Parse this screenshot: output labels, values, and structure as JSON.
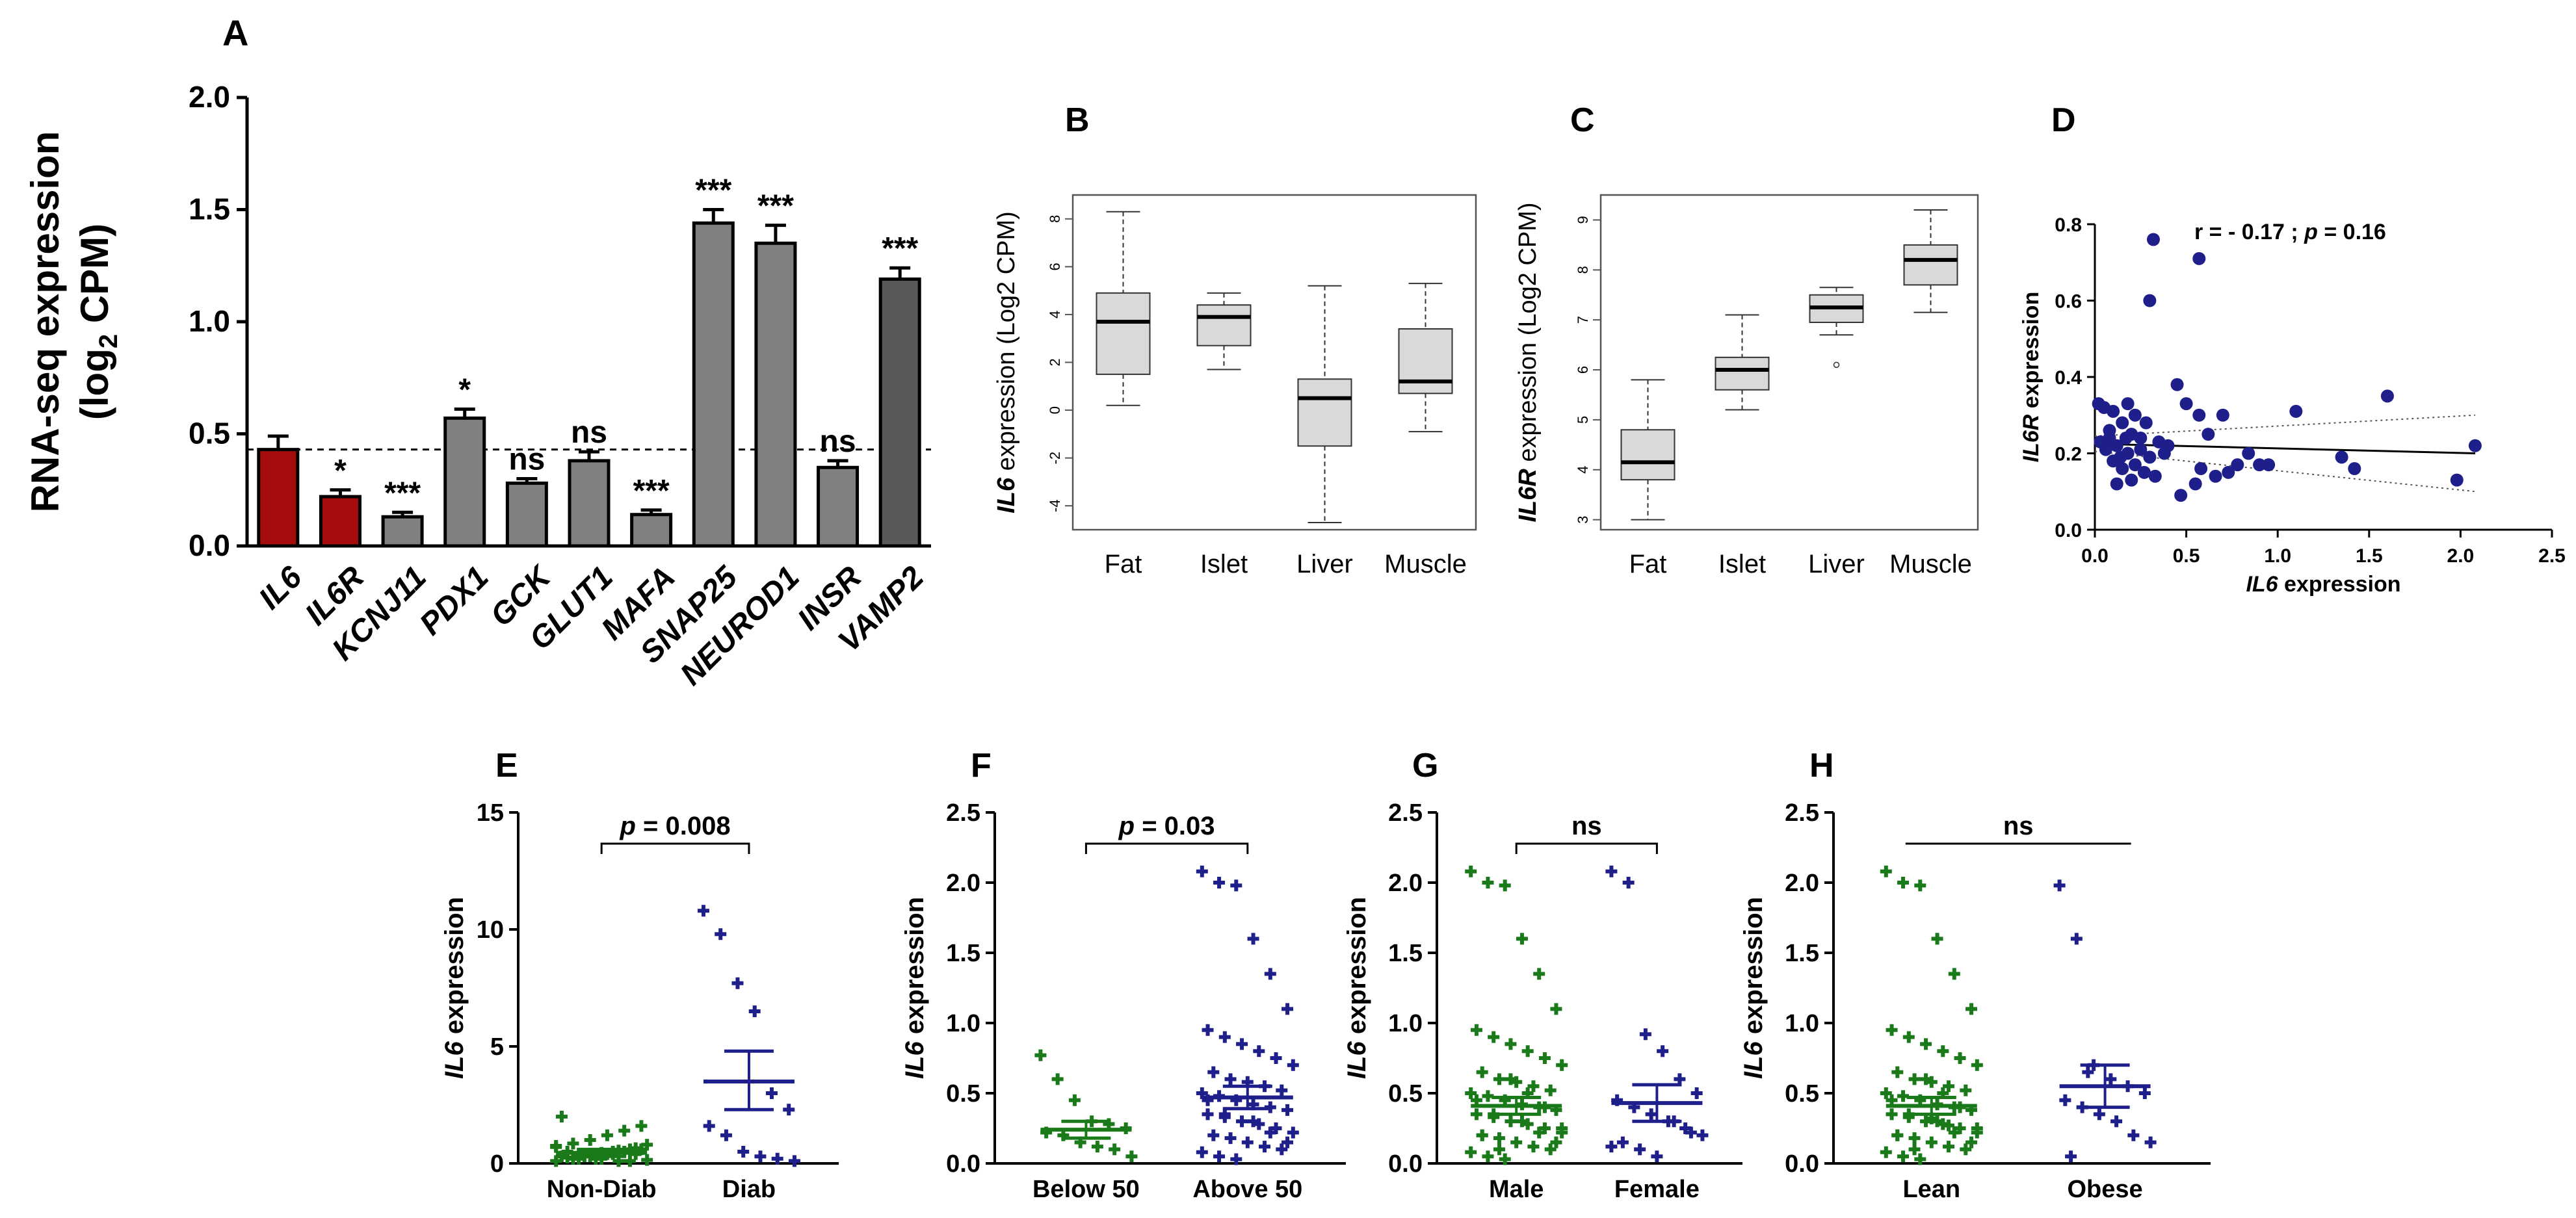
{
  "colors": {
    "dark_red": "#a50d0d",
    "grey_bar": "#808080",
    "dark_bar": "#595959",
    "box_fill": "#d9d9d9",
    "green": "#1a7a1a",
    "navy": "#1f1f8c"
  },
  "panels": {
    "A": {
      "letter": "A"
    },
    "B": {
      "letter": "B"
    },
    "C": {
      "letter": "C"
    },
    "D": {
      "letter": "D"
    },
    "E": {
      "letter": "E"
    },
    "F": {
      "letter": "F"
    },
    "G": {
      "letter": "G"
    },
    "H": {
      "letter": "H"
    }
  },
  "chart_data": [
    {
      "id": "A",
      "type": "bar",
      "ylabel_line1": "RNA-seq expression",
      "ylabel_line2": "(log",
      "ylabel_sub": "2",
      "ylabel_line2_end": " CPM)",
      "ylim": [
        0,
        2.0
      ],
      "yticks": [
        "0.0",
        "0.5",
        "1.0",
        "1.5",
        "2.0"
      ],
      "reference_line": 0.43,
      "categories": [
        "IL6",
        "IL6R",
        "KCNJ11",
        "PDX1",
        "GCK",
        "GLUT1",
        "MAFA",
        "SNAP25",
        "NEUROD1",
        "INSR",
        "VAMP2"
      ],
      "values": [
        0.43,
        0.22,
        0.13,
        0.57,
        0.28,
        0.38,
        0.14,
        1.44,
        1.35,
        0.35,
        1.19
      ],
      "errors": [
        0.06,
        0.03,
        0.02,
        0.04,
        0.02,
        0.04,
        0.02,
        0.06,
        0.08,
        0.03,
        0.05
      ],
      "bar_colors": [
        "dark_red",
        "dark_red",
        "grey_bar",
        "grey_bar",
        "grey_bar",
        "grey_bar",
        "grey_bar",
        "grey_bar",
        "grey_bar",
        "grey_bar",
        "dark_bar"
      ],
      "significance": [
        "",
        "*",
        "***",
        "*",
        "ns",
        "ns",
        "***",
        "***",
        "***",
        "ns",
        "***"
      ]
    },
    {
      "id": "B",
      "type": "boxplot",
      "ylabel_gene": "IL6",
      "ylabel_rest": " expression  (Log2 CPM)",
      "ylim": [
        -5,
        9
      ],
      "yticks": [
        "-4",
        "-2",
        "0",
        "2",
        "4",
        "6",
        "8"
      ],
      "categories": [
        "Fat",
        "Islet",
        "Liver",
        "Muscle"
      ],
      "boxes": [
        {
          "whisker_low": 0.2,
          "q1": 1.5,
          "median": 3.7,
          "q3": 4.9,
          "whisker_high": 8.3
        },
        {
          "whisker_low": 1.7,
          "q1": 2.7,
          "median": 3.9,
          "q3": 4.4,
          "whisker_high": 4.9
        },
        {
          "whisker_low": -4.7,
          "q1": -1.5,
          "median": 0.5,
          "q3": 1.3,
          "whisker_high": 5.2
        },
        {
          "whisker_low": -0.9,
          "q1": 0.7,
          "median": 1.2,
          "q3": 3.4,
          "whisker_high": 5.3
        }
      ],
      "outliers": []
    },
    {
      "id": "C",
      "type": "boxplot",
      "ylabel_gene": "IL6R",
      "ylabel_rest": " expression  (Log2 CPM)",
      "ylim": [
        2.8,
        9.5
      ],
      "yticks": [
        "3",
        "4",
        "5",
        "6",
        "7",
        "8",
        "9"
      ],
      "categories": [
        "Fat",
        "Islet",
        "Liver",
        "Muscle"
      ],
      "boxes": [
        {
          "whisker_low": 3.0,
          "q1": 3.8,
          "median": 4.15,
          "q3": 4.8,
          "whisker_high": 5.8
        },
        {
          "whisker_low": 5.2,
          "q1": 5.6,
          "median": 6.0,
          "q3": 6.25,
          "whisker_high": 7.1
        },
        {
          "whisker_low": 6.7,
          "q1": 6.95,
          "median": 7.25,
          "q3": 7.5,
          "whisker_high": 7.65
        },
        {
          "whisker_low": 7.15,
          "q1": 7.7,
          "median": 8.2,
          "q3": 8.5,
          "whisker_high": 9.2
        }
      ],
      "outliers": [
        {
          "group": 2,
          "y": 6.1
        }
      ]
    },
    {
      "id": "D",
      "type": "scatter",
      "annotation_r": "r = - 0.17 ; ",
      "annotation_p": "p",
      "annotation_pval": " = 0.16",
      "xlabel_gene": "IL6",
      "xlabel_rest": " expression",
      "ylabel_gene": "IL6R",
      "ylabel_rest": " expression",
      "xlim": [
        0,
        2.5
      ],
      "ylim": [
        0,
        0.8
      ],
      "xticks": [
        "0.0",
        "0.5",
        "1.0",
        "1.5",
        "2.0",
        "2.5"
      ],
      "yticks": [
        "0.0",
        "0.2",
        "0.4",
        "0.6",
        "0.8"
      ],
      "regression": {
        "x0": 0,
        "y0": 0.225,
        "x1": 2.08,
        "y1": 0.2
      },
      "ci_upper": {
        "x0": 0,
        "y0": 0.245,
        "x1": 2.08,
        "y1": 0.3
      },
      "ci_lower": {
        "x0": 0,
        "y0": 0.205,
        "x1": 2.08,
        "y1": 0.1
      },
      "points": [
        [
          0.32,
          0.76
        ],
        [
          0.57,
          0.71
        ],
        [
          0.3,
          0.6
        ],
        [
          0.02,
          0.33
        ],
        [
          0.05,
          0.32
        ],
        [
          0.1,
          0.31
        ],
        [
          0.18,
          0.33
        ],
        [
          0.22,
          0.3
        ],
        [
          0.28,
          0.28
        ],
        [
          0.15,
          0.28
        ],
        [
          0.08,
          0.26
        ],
        [
          0.2,
          0.25
        ],
        [
          0.25,
          0.24
        ],
        [
          0.35,
          0.23
        ],
        [
          0.4,
          0.22
        ],
        [
          0.12,
          0.22
        ],
        [
          0.06,
          0.21
        ],
        [
          0.18,
          0.2
        ],
        [
          0.3,
          0.19
        ],
        [
          0.1,
          0.18
        ],
        [
          0.22,
          0.17
        ],
        [
          0.15,
          0.16
        ],
        [
          0.27,
          0.15
        ],
        [
          0.33,
          0.14
        ],
        [
          0.2,
          0.13
        ],
        [
          0.12,
          0.12
        ],
        [
          0.08,
          0.24
        ],
        [
          0.38,
          0.2
        ],
        [
          0.45,
          0.38
        ],
        [
          0.5,
          0.33
        ],
        [
          0.57,
          0.3
        ],
        [
          0.62,
          0.25
        ],
        [
          0.7,
          0.3
        ],
        [
          0.47,
          0.09
        ],
        [
          0.55,
          0.12
        ],
        [
          0.58,
          0.16
        ],
        [
          0.66,
          0.14
        ],
        [
          0.73,
          0.15
        ],
        [
          0.78,
          0.17
        ],
        [
          0.84,
          0.2
        ],
        [
          0.9,
          0.17
        ],
        [
          0.95,
          0.17
        ],
        [
          1.1,
          0.31
        ],
        [
          1.35,
          0.19
        ],
        [
          1.42,
          0.16
        ],
        [
          1.6,
          0.35
        ],
        [
          1.98,
          0.13
        ],
        [
          2.08,
          0.22
        ],
        [
          0.25,
          0.21
        ],
        [
          0.14,
          0.19
        ],
        [
          0.03,
          0.23
        ],
        [
          0.17,
          0.24
        ]
      ]
    },
    {
      "id": "E",
      "type": "scatter",
      "ylabel_gene": "IL6",
      "ylabel_rest": " expression",
      "ylim": [
        0,
        15
      ],
      "yticks": [
        "0",
        "5",
        "10",
        "15"
      ],
      "groups": [
        "Non-Diab",
        "Diab"
      ],
      "bracket_type": "p",
      "bracket_p": "p",
      "bracket_text": " = 0.008",
      "means": [
        0.45,
        3.5
      ],
      "sem_low": [
        0.3,
        2.3
      ],
      "sem_high": [
        0.6,
        4.8
      ],
      "points": [
        [
          0.1,
          0.2,
          0.3,
          0.4,
          0.5,
          0.6,
          0.3,
          0.2,
          0.4,
          0.5,
          0.1,
          0.15,
          0.25,
          0.35,
          0.45,
          0.55,
          0.65,
          0.75,
          0.85,
          1.0,
          1.2,
          1.4,
          1.6,
          2.0,
          0.3,
          0.2,
          0.4,
          0.6,
          0.8,
          0.5,
          0.3,
          0.2,
          0.1,
          0.4,
          0.7
        ],
        [
          10.8,
          9.8,
          7.7,
          6.5,
          3.0,
          2.3,
          1.6,
          1.2,
          0.5,
          0.3,
          0.2,
          0.1
        ]
      ]
    },
    {
      "id": "F",
      "type": "scatter",
      "ylabel_gene": "IL6",
      "ylabel_rest": " expression",
      "ylim": [
        0,
        2.5
      ],
      "yticks": [
        "0.0",
        "0.5",
        "1.0",
        "1.5",
        "2.0",
        "2.5"
      ],
      "groups": [
        "Below 50",
        "Above 50"
      ],
      "bracket_type": "p",
      "bracket_p": "p",
      "bracket_text": " = 0.03",
      "means": [
        0.24,
        0.47
      ],
      "sem_low": [
        0.18,
        0.39
      ],
      "sem_high": [
        0.3,
        0.55
      ],
      "points": [
        [
          0.77,
          0.6,
          0.45,
          0.3,
          0.28,
          0.25,
          0.22,
          0.2,
          0.15,
          0.12,
          0.1,
          0.05
        ],
        [
          2.08,
          2.0,
          1.98,
          1.6,
          1.35,
          1.1,
          0.95,
          0.9,
          0.85,
          0.8,
          0.75,
          0.7,
          0.65,
          0.6,
          0.58,
          0.55,
          0.52,
          0.5,
          0.48,
          0.45,
          0.42,
          0.4,
          0.38,
          0.35,
          0.33,
          0.3,
          0.28,
          0.25,
          0.22,
          0.2,
          0.18,
          0.15,
          0.12,
          0.1,
          0.08,
          0.05,
          0.03,
          0.3,
          0.22,
          0.15,
          0.45,
          0.35
        ]
      ]
    },
    {
      "id": "G",
      "type": "scatter",
      "ylabel_gene": "IL6",
      "ylabel_rest": " expression",
      "ylim": [
        0,
        2.5
      ],
      "yticks": [
        "0.0",
        "0.5",
        "1.0",
        "1.5",
        "2.0",
        "2.5"
      ],
      "groups": [
        "Male",
        "Female"
      ],
      "bracket_type": "ns",
      "bracket_text": "ns",
      "means": [
        0.41,
        0.43
      ],
      "sem_low": [
        0.35,
        0.3
      ],
      "sem_high": [
        0.47,
        0.56
      ],
      "points": [
        [
          2.08,
          2.0,
          1.98,
          1.6,
          1.35,
          1.1,
          0.95,
          0.9,
          0.85,
          0.8,
          0.75,
          0.7,
          0.65,
          0.6,
          0.58,
          0.55,
          0.52,
          0.5,
          0.48,
          0.45,
          0.42,
          0.4,
          0.38,
          0.35,
          0.33,
          0.3,
          0.28,
          0.25,
          0.22,
          0.2,
          0.18,
          0.15,
          0.12,
          0.1,
          0.08,
          0.05,
          0.03,
          0.3,
          0.22,
          0.15,
          0.45,
          0.35,
          0.6,
          0.5,
          0.4,
          0.25,
          0.2,
          0.1
        ],
        [
          2.08,
          2.0,
          0.92,
          0.8,
          0.6,
          0.5,
          0.45,
          0.4,
          0.35,
          0.3,
          0.25,
          0.2,
          0.15,
          0.1,
          0.05,
          0.3,
          0.22,
          0.12
        ]
      ]
    },
    {
      "id": "H",
      "type": "scatter",
      "ylabel_gene": "IL6",
      "ylabel_rest": " expression",
      "ylim": [
        0,
        2.5
      ],
      "yticks": [
        "0.0",
        "0.5",
        "1.0",
        "1.5",
        "2.0",
        "2.5"
      ],
      "groups": [
        "Lean",
        "Obese"
      ],
      "bracket_type": "ns",
      "bracket_text": "ns",
      "means": [
        0.41,
        0.55
      ],
      "sem_low": [
        0.35,
        0.4
      ],
      "sem_high": [
        0.47,
        0.7
      ],
      "points": [
        [
          2.08,
          2.0,
          1.98,
          1.6,
          1.35,
          1.1,
          0.95,
          0.9,
          0.85,
          0.8,
          0.75,
          0.7,
          0.65,
          0.6,
          0.58,
          0.55,
          0.52,
          0.5,
          0.48,
          0.45,
          0.42,
          0.4,
          0.38,
          0.35,
          0.33,
          0.3,
          0.28,
          0.25,
          0.22,
          0.2,
          0.18,
          0.15,
          0.12,
          0.1,
          0.08,
          0.05,
          0.03,
          0.3,
          0.22,
          0.15,
          0.45,
          0.35,
          0.6,
          0.5,
          0.4,
          0.25,
          0.2,
          0.1,
          0.32,
          0.27
        ],
        [
          1.98,
          1.6,
          0.7,
          0.6,
          0.55,
          0.5,
          0.45,
          0.4,
          0.35,
          0.3,
          0.2,
          0.15,
          0.05,
          0.65
        ]
      ]
    }
  ]
}
